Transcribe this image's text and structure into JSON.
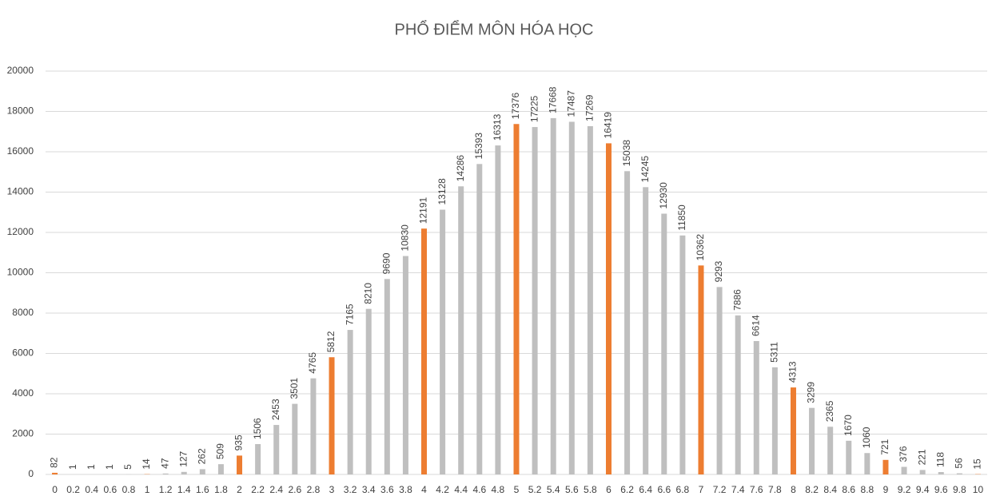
{
  "chart_data": {
    "type": "bar",
    "title": "PHỔ ĐIỂM MÔN HÓA HỌC",
    "categories": [
      "0",
      "0.2",
      "0.4",
      "0.6",
      "0.8",
      "1",
      "1.2",
      "1.4",
      "1.6",
      "1.8",
      "2",
      "2.2",
      "2.4",
      "2.6",
      "2.8",
      "3",
      "3.2",
      "3.4",
      "3.6",
      "3.8",
      "4",
      "4.2",
      "4.4",
      "4.6",
      "4.8",
      "5",
      "5.2",
      "5.4",
      "5.6",
      "5.8",
      "6",
      "6.2",
      "6.4",
      "6.6",
      "6.8",
      "7",
      "7.2",
      "7.4",
      "7.6",
      "7.8",
      "8",
      "8.2",
      "8.4",
      "8.6",
      "8.8",
      "9",
      "9.2",
      "9.4",
      "9.6",
      "9.8",
      "10"
    ],
    "values": [
      82,
      1,
      1,
      1,
      5,
      14,
      47,
      127,
      262,
      509,
      935,
      1506,
      2453,
      3501,
      4765,
      5812,
      7165,
      8210,
      9690,
      10830,
      12191,
      13128,
      14286,
      15393,
      16313,
      17376,
      17225,
      17668,
      17487,
      17269,
      16419,
      15038,
      14245,
      12930,
      11850,
      10362,
      9293,
      7886,
      6614,
      5311,
      4313,
      3299,
      2365,
      1670,
      1060,
      721,
      376,
      221,
      118,
      56,
      15
    ],
    "colors": [
      "#ed7d31",
      "#bfbfbf",
      "#bfbfbf",
      "#bfbfbf",
      "#bfbfbf",
      "#ed7d31",
      "#bfbfbf",
      "#bfbfbf",
      "#bfbfbf",
      "#bfbfbf",
      "#ed7d31",
      "#bfbfbf",
      "#bfbfbf",
      "#bfbfbf",
      "#bfbfbf",
      "#ed7d31",
      "#bfbfbf",
      "#bfbfbf",
      "#bfbfbf",
      "#bfbfbf",
      "#ed7d31",
      "#bfbfbf",
      "#bfbfbf",
      "#bfbfbf",
      "#bfbfbf",
      "#ed7d31",
      "#bfbfbf",
      "#bfbfbf",
      "#bfbfbf",
      "#bfbfbf",
      "#ed7d31",
      "#bfbfbf",
      "#bfbfbf",
      "#bfbfbf",
      "#bfbfbf",
      "#ed7d31",
      "#bfbfbf",
      "#bfbfbf",
      "#bfbfbf",
      "#bfbfbf",
      "#ed7d31",
      "#bfbfbf",
      "#bfbfbf",
      "#bfbfbf",
      "#bfbfbf",
      "#ed7d31",
      "#bfbfbf",
      "#bfbfbf",
      "#bfbfbf",
      "#bfbfbf",
      "#ed7d31"
    ],
    "ylim": [
      0,
      20000
    ],
    "yticks": [
      0,
      2000,
      4000,
      6000,
      8000,
      10000,
      12000,
      14000,
      16000,
      18000,
      20000
    ],
    "grid": true
  }
}
